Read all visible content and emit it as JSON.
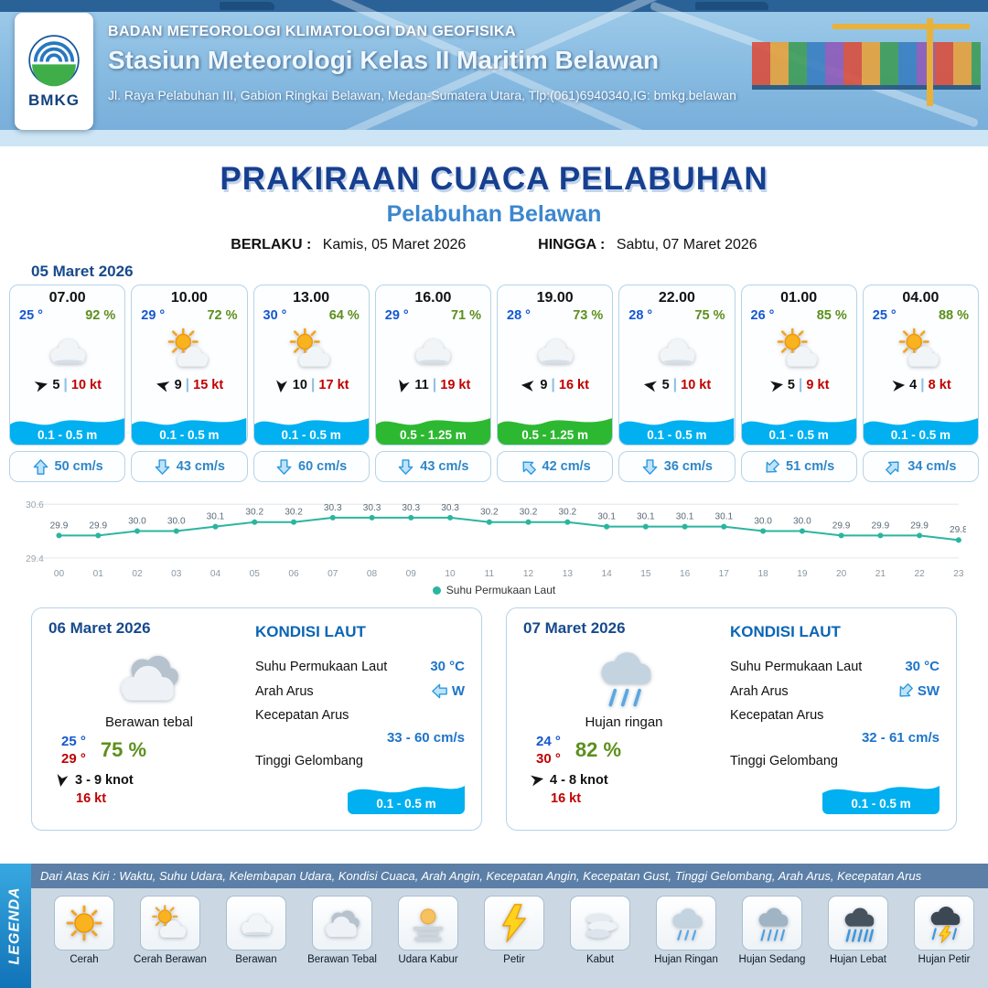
{
  "header": {
    "logo_text": "BMKG",
    "agency": "BADAN METEOROLOGI KLIMATOLOGI DAN GEOFISIKA",
    "station": "Stasiun Meteorologi Kelas II Maritim Belawan",
    "address": "Jl. Raya Pelabuhan III, Gabion Ringkai Belawan, Medan-Sumatera Utara, Tlp:(061)6940340,IG: bmkg.belawan"
  },
  "title": {
    "main": "PRAKIRAAN CUACA PELABUHAN",
    "subtitle": "Pelabuhan Belawan",
    "valid_label": "BERLAKU :",
    "valid_value": "Kamis, 05 Maret 2026",
    "until_label": "HINGGA :",
    "until_value": "Sabtu, 07 Maret 2026"
  },
  "forecast_day1": {
    "date": "05 Maret 2026",
    "cards": [
      {
        "time": "07.00",
        "temp": "25 °",
        "humidity": "92 %",
        "icon": "berawan",
        "wind_deg": -15,
        "wind_speed": "5",
        "gust": "10 kt",
        "wave": "0.1 - 0.5 m",
        "wave_color": "blue",
        "current_deg": 0,
        "current": "50 cm/s"
      },
      {
        "time": "10.00",
        "temp": "29 °",
        "humidity": "72 %",
        "icon": "cerah-berawan",
        "wind_deg": 195,
        "wind_speed": "9",
        "gust": "15 kt",
        "wave": "0.1 - 0.5 m",
        "wave_color": "blue",
        "current_deg": 180,
        "current": "43 cm/s"
      },
      {
        "time": "13.00",
        "temp": "30 °",
        "humidity": "64 %",
        "icon": "cerah-berawan",
        "wind_deg": 95,
        "wind_speed": "10",
        "gust": "17 kt",
        "wave": "0.1 - 0.5 m",
        "wave_color": "blue",
        "current_deg": 180,
        "current": "60 cm/s"
      },
      {
        "time": "16.00",
        "temp": "29 °",
        "humidity": "71 %",
        "icon": "berawan",
        "wind_deg": 105,
        "wind_speed": "11",
        "gust": "19 kt",
        "wave": "0.5 - 1.25 m",
        "wave_color": "green",
        "current_deg": 180,
        "current": "43 cm/s"
      },
      {
        "time": "19.00",
        "temp": "28 °",
        "humidity": "73 %",
        "icon": "berawan",
        "wind_deg": 185,
        "wind_speed": "9",
        "gust": "16 kt",
        "wave": "0.5 - 1.25 m",
        "wave_color": "green",
        "current_deg": -45,
        "current": "42 cm/s"
      },
      {
        "time": "22.00",
        "temp": "28 °",
        "humidity": "75 %",
        "icon": "berawan",
        "wind_deg": 190,
        "wind_speed": "5",
        "gust": "10 kt",
        "wave": "0.1 - 0.5 m",
        "wave_color": "blue",
        "current_deg": 180,
        "current": "36 cm/s"
      },
      {
        "time": "01.00",
        "temp": "26 °",
        "humidity": "85 %",
        "icon": "cerah-berawan",
        "wind_deg": -10,
        "wind_speed": "5",
        "gust": "9 kt",
        "wave": "0.1 - 0.5 m",
        "wave_color": "blue",
        "current_deg": -135,
        "current": "51 cm/s"
      },
      {
        "time": "04.00",
        "temp": "25 °",
        "humidity": "88 %",
        "icon": "cerah-berawan",
        "wind_deg": -5,
        "wind_speed": "4",
        "gust": "8 kt",
        "wave": "0.1 - 0.5 m",
        "wave_color": "blue",
        "current_deg": 45,
        "current": "34 cm/s"
      }
    ]
  },
  "chart_data": {
    "type": "line",
    "title": "",
    "series_label": "Suhu Permukaan Laut",
    "x": [
      "00",
      "01",
      "02",
      "03",
      "04",
      "05",
      "06",
      "07",
      "08",
      "09",
      "10",
      "11",
      "12",
      "13",
      "14",
      "15",
      "16",
      "17",
      "18",
      "19",
      "20",
      "21",
      "22",
      "23"
    ],
    "values": [
      29.9,
      29.9,
      30.0,
      30.0,
      30.1,
      30.2,
      30.2,
      30.3,
      30.3,
      30.3,
      30.3,
      30.2,
      30.2,
      30.2,
      30.1,
      30.1,
      30.1,
      30.1,
      30.0,
      30.0,
      29.9,
      29.9,
      29.9,
      29.8
    ],
    "ylim": [
      29.4,
      30.6
    ],
    "line_color": "#2bb5a0",
    "legend_position": "bottom",
    "grid": true
  },
  "day_panels": [
    {
      "date": "06 Maret 2026",
      "icon": "berawan-tebal",
      "condition": "Berawan tebal",
      "temp_min": "25 °",
      "temp_max": "29 °",
      "humidity": "75 %",
      "wind_deg": 100,
      "wind_range": "3 - 9 knot",
      "gust": "16 kt",
      "sea": {
        "title": "KONDISI LAUT",
        "sst_label": "Suhu Permukaan Laut",
        "sst": "30 °C",
        "dir_label": "Arah Arus",
        "dir": "W",
        "dir_deg": -90,
        "speed_label": "Kecepatan Arus",
        "speed": "33 - 60 cm/s",
        "wave_label": "Tinggi Gelombang",
        "wave": "0.1 - 0.5 m"
      }
    },
    {
      "date": "07 Maret 2026",
      "icon": "hujan-ringan",
      "condition": "Hujan ringan",
      "temp_min": "24 °",
      "temp_max": "30 °",
      "humidity": "82 %",
      "wind_deg": -10,
      "wind_range": "4 - 8 knot",
      "gust": "16 kt",
      "sea": {
        "title": "KONDISI LAUT",
        "sst_label": "Suhu Permukaan Laut",
        "sst": "30 °C",
        "dir_label": "Arah Arus",
        "dir": "SW",
        "dir_deg": -135,
        "speed_label": "Kecepatan Arus",
        "speed": "32 - 61 cm/s",
        "wave_label": "Tinggi Gelombang",
        "wave": "0.1 - 0.5 m"
      }
    }
  ],
  "legend": {
    "title": "LEGENDA",
    "note": "Dari Atas Kiri : Waktu, Suhu Udara, Kelembapan Udara, Kondisi Cuaca, Arah Angin, Kecepatan Angin, Kecepatan Gust, Tinggi Gelombang, Arah Arus, Kecepatan Arus",
    "items": [
      {
        "label": "Cerah",
        "icon": "cerah"
      },
      {
        "label": "Cerah Berawan",
        "icon": "cerah-berawan"
      },
      {
        "label": "Berawan",
        "icon": "berawan"
      },
      {
        "label": "Berawan Tebal",
        "icon": "berawan-tebal"
      },
      {
        "label": "Udara Kabur",
        "icon": "udara-kabur"
      },
      {
        "label": "Petir",
        "icon": "petir"
      },
      {
        "label": "Kabut",
        "icon": "kabut"
      },
      {
        "label": "Hujan Ringan",
        "icon": "hujan-ringan"
      },
      {
        "label": "Hujan Sedang",
        "icon": "hujan-sedang"
      },
      {
        "label": "Hujan Lebat",
        "icon": "hujan-lebat"
      },
      {
        "label": "Hujan Petir",
        "icon": "hujan-petir"
      }
    ]
  }
}
